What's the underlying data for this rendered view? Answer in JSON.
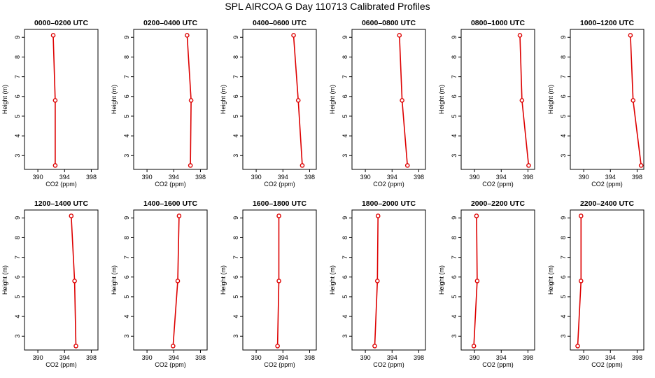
{
  "title": "SPL AIRCOA G  Day 110713  Calibrated Profiles",
  "chart_data": [
    {
      "type": "line",
      "title": "0000–0200 UTC",
      "xlabel": "CO2 (ppm)",
      "ylabel": "Height (m)",
      "xlim": [
        388,
        399
      ],
      "ylim": [
        2.3,
        9.4
      ],
      "x_ticks": [
        390,
        394,
        398
      ],
      "y_ticks": [
        3,
        4,
        5,
        6,
        7,
        8,
        9
      ],
      "series": [
        {
          "x": [
            392.3,
            392.6,
            392.6
          ],
          "y": [
            9.1,
            5.8,
            2.5
          ]
        }
      ]
    },
    {
      "type": "line",
      "title": "0200–0400 UTC",
      "xlabel": "CO2 (ppm)",
      "ylabel": "Height (m)",
      "xlim": [
        388,
        399
      ],
      "ylim": [
        2.3,
        9.4
      ],
      "x_ticks": [
        390,
        394,
        398
      ],
      "y_ticks": [
        3,
        4,
        5,
        6,
        7,
        8,
        9
      ],
      "series": [
        {
          "x": [
            396.0,
            396.6,
            396.5
          ],
          "y": [
            9.1,
            5.8,
            2.5
          ]
        }
      ]
    },
    {
      "type": "line",
      "title": "0400–0600 UTC",
      "xlabel": "CO2 (ppm)",
      "ylabel": "Height (m)",
      "xlim": [
        388,
        399
      ],
      "ylim": [
        2.3,
        9.4
      ],
      "x_ticks": [
        390,
        394,
        398
      ],
      "y_ticks": [
        3,
        4,
        5,
        6,
        7,
        8,
        9
      ],
      "series": [
        {
          "x": [
            395.6,
            396.3,
            396.9
          ],
          "y": [
            9.1,
            5.8,
            2.5
          ]
        }
      ]
    },
    {
      "type": "line",
      "title": "0600–0800 UTC",
      "xlabel": "CO2 (ppm)",
      "ylabel": "Height (m)",
      "xlim": [
        388,
        399
      ],
      "ylim": [
        2.3,
        9.4
      ],
      "x_ticks": [
        390,
        394,
        398
      ],
      "y_ticks": [
        3,
        4,
        5,
        6,
        7,
        8,
        9
      ],
      "series": [
        {
          "x": [
            395.1,
            395.5,
            396.3
          ],
          "y": [
            9.1,
            5.8,
            2.5
          ]
        }
      ]
    },
    {
      "type": "line",
      "title": "0800–1000 UTC",
      "xlabel": "CO2 (ppm)",
      "ylabel": "Height (m)",
      "xlim": [
        388,
        399
      ],
      "ylim": [
        2.3,
        9.4
      ],
      "x_ticks": [
        390,
        394,
        398
      ],
      "y_ticks": [
        3,
        4,
        5,
        6,
        7,
        8,
        9
      ],
      "series": [
        {
          "x": [
            396.8,
            397.1,
            398.1
          ],
          "y": [
            9.1,
            5.8,
            2.5
          ]
        }
      ]
    },
    {
      "type": "line",
      "title": "1000–1200 UTC",
      "xlabel": "CO2 (ppm)",
      "ylabel": "Height (m)",
      "xlim": [
        388,
        399
      ],
      "ylim": [
        2.3,
        9.4
      ],
      "x_ticks": [
        390,
        394,
        398
      ],
      "y_ticks": [
        3,
        4,
        5,
        6,
        7,
        8,
        9
      ],
      "series": [
        {
          "x": [
            397.0,
            397.4,
            398.6
          ],
          "y": [
            9.1,
            5.8,
            2.5
          ]
        }
      ]
    },
    {
      "type": "line",
      "title": "1200–1400 UTC",
      "xlabel": "CO2 (ppm)",
      "ylabel": "Height (m)",
      "xlim": [
        388,
        399
      ],
      "ylim": [
        2.3,
        9.4
      ],
      "x_ticks": [
        390,
        394,
        398
      ],
      "y_ticks": [
        3,
        4,
        5,
        6,
        7,
        8,
        9
      ],
      "series": [
        {
          "x": [
            395.0,
            395.5,
            395.7
          ],
          "y": [
            9.1,
            5.8,
            2.5
          ]
        }
      ]
    },
    {
      "type": "line",
      "title": "1400–1600 UTC",
      "xlabel": "CO2 (ppm)",
      "ylabel": "Height (m)",
      "xlim": [
        388,
        399
      ],
      "ylim": [
        2.3,
        9.4
      ],
      "x_ticks": [
        390,
        394,
        398
      ],
      "y_ticks": [
        3,
        4,
        5,
        6,
        7,
        8,
        9
      ],
      "series": [
        {
          "x": [
            394.8,
            394.6,
            393.9
          ],
          "y": [
            9.1,
            5.8,
            2.5
          ]
        }
      ]
    },
    {
      "type": "line",
      "title": "1600–1800 UTC",
      "xlabel": "CO2 (ppm)",
      "ylabel": "Height (m)",
      "xlim": [
        388,
        399
      ],
      "ylim": [
        2.3,
        9.4
      ],
      "x_ticks": [
        390,
        394,
        398
      ],
      "y_ticks": [
        3,
        4,
        5,
        6,
        7,
        8,
        9
      ],
      "series": [
        {
          "x": [
            393.4,
            393.4,
            393.2
          ],
          "y": [
            9.1,
            5.8,
            2.5
          ]
        }
      ]
    },
    {
      "type": "line",
      "title": "1800–2000 UTC",
      "xlabel": "CO2 (ppm)",
      "ylabel": "Height (m)",
      "xlim": [
        388,
        399
      ],
      "ylim": [
        2.3,
        9.4
      ],
      "x_ticks": [
        390,
        394,
        398
      ],
      "y_ticks": [
        3,
        4,
        5,
        6,
        7,
        8,
        9
      ],
      "series": [
        {
          "x": [
            391.9,
            391.8,
            391.4
          ],
          "y": [
            9.1,
            5.8,
            2.5
          ]
        }
      ]
    },
    {
      "type": "line",
      "title": "2000–2200 UTC",
      "xlabel": "CO2 (ppm)",
      "ylabel": "Height (m)",
      "xlim": [
        388,
        399
      ],
      "ylim": [
        2.3,
        9.4
      ],
      "x_ticks": [
        390,
        394,
        398
      ],
      "y_ticks": [
        3,
        4,
        5,
        6,
        7,
        8,
        9
      ],
      "series": [
        {
          "x": [
            390.3,
            390.4,
            389.9
          ],
          "y": [
            9.1,
            5.8,
            2.5
          ]
        }
      ]
    },
    {
      "type": "line",
      "title": "2200–2400 UTC",
      "xlabel": "CO2 (ppm)",
      "ylabel": "Height (m)",
      "xlim": [
        388,
        399
      ],
      "ylim": [
        2.3,
        9.4
      ],
      "x_ticks": [
        390,
        394,
        398
      ],
      "y_ticks": [
        3,
        4,
        5,
        6,
        7,
        8,
        9
      ],
      "series": [
        {
          "x": [
            389.6,
            389.6,
            389.1
          ],
          "y": [
            9.1,
            5.8,
            2.5
          ]
        }
      ]
    }
  ],
  "style": {
    "line_color": "#dd0000",
    "axis_color": "#000000"
  }
}
